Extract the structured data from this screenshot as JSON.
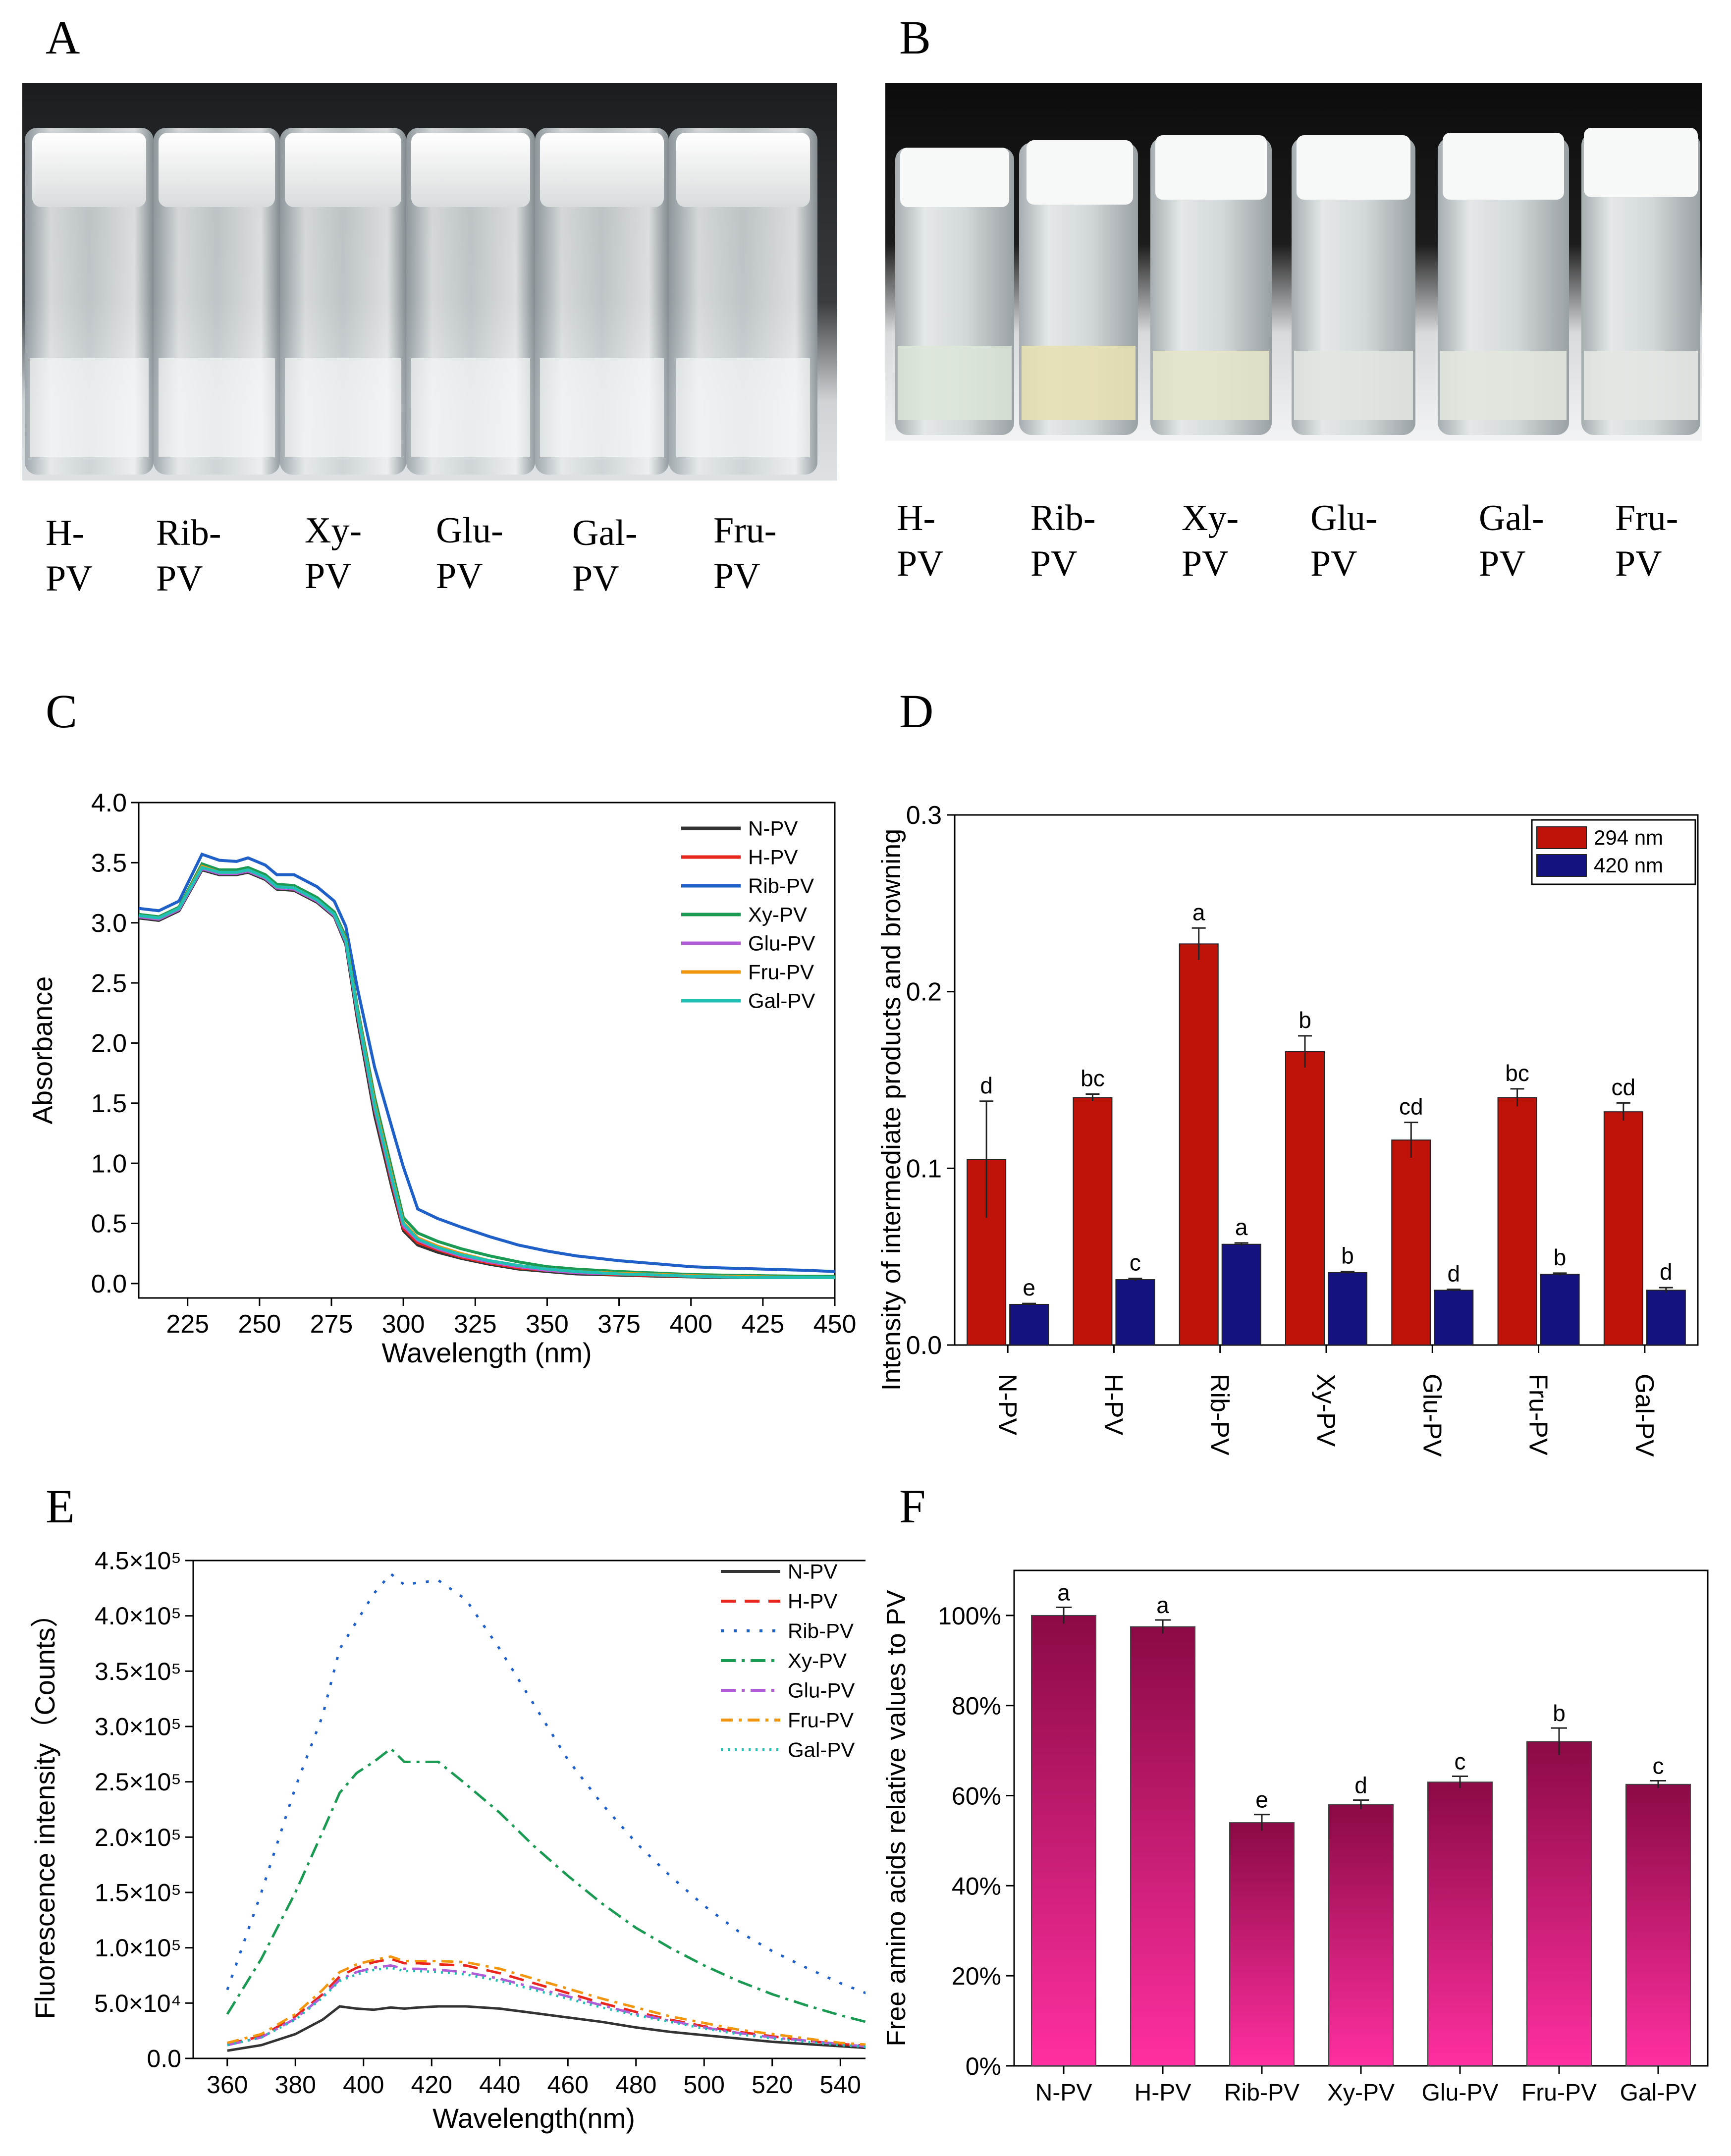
{
  "panels": {
    "A": {
      "letter": "A",
      "vial_labels": [
        "H-\nPV",
        "Rib-\nPV",
        "Xy-\nPV",
        "Glu-\nPV",
        "Gal-\nPV",
        "Fru-\nPV"
      ]
    },
    "B": {
      "letter": "B",
      "vial_labels": [
        "H-\nPV",
        "Rib-\nPV",
        "Xy-\nPV",
        "Glu-\nPV",
        "Gal-\nPV",
        "Fru-\nPV"
      ]
    },
    "C": {
      "letter": "C"
    },
    "D": {
      "letter": "D"
    },
    "E": {
      "letter": "E"
    },
    "F": {
      "letter": "F"
    }
  },
  "colors": {
    "N-PV": "#333333",
    "H-PV": "#e8261d",
    "Rib-PV": "#1f5fc8",
    "Xy-PV": "#1a9a52",
    "Glu-PV": "#b05cd6",
    "Fru-PV": "#f2950f",
    "Gal-PV": "#21c0b4",
    "bar294": "#bf1208",
    "bar420": "#14127e",
    "barF_top": "#8b0a45",
    "barF_bottom": "#ff2fa0"
  },
  "chart_data": [
    {
      "id": "C",
      "type": "line",
      "title": "",
      "xlabel": "Wavelength (nm)",
      "ylabel": "Absorbance",
      "xlim": [
        208,
        450
      ],
      "ylim": [
        -0.12,
        4.0
      ],
      "xticks": [
        "225",
        "250",
        "275",
        "300",
        "325",
        "350",
        "375",
        "400",
        "425",
        "450"
      ],
      "yticks": [
        "0.0",
        "0.5",
        "1.0",
        "1.5",
        "2.0",
        "2.5",
        "3.0",
        "3.5",
        "4.0"
      ],
      "legend": [
        "N-PV",
        "H-PV",
        "Rib-PV",
        "Xy-PV",
        "Glu-PV",
        "Fru-PV",
        "Gal-PV"
      ],
      "x": [
        208,
        215,
        222,
        230,
        236,
        242,
        246,
        252,
        256,
        262,
        270,
        276,
        280,
        284,
        290,
        296,
        300,
        305,
        312,
        320,
        330,
        340,
        350,
        360,
        375,
        390,
        400,
        410,
        425,
        440,
        450
      ],
      "series": [
        {
          "name": "N-PV",
          "values": [
            3.04,
            3.02,
            3.1,
            3.44,
            3.4,
            3.4,
            3.42,
            3.36,
            3.28,
            3.27,
            3.17,
            3.05,
            2.82,
            2.2,
            1.4,
            0.8,
            0.44,
            0.32,
            0.26,
            0.21,
            0.16,
            0.12,
            0.1,
            0.08,
            0.07,
            0.06,
            0.055,
            0.05,
            0.05,
            0.05,
            0.05
          ]
        },
        {
          "name": "H-PV",
          "values": [
            3.05,
            3.03,
            3.11,
            3.46,
            3.41,
            3.41,
            3.43,
            3.37,
            3.29,
            3.28,
            3.18,
            3.06,
            2.84,
            2.24,
            1.45,
            0.84,
            0.46,
            0.34,
            0.28,
            0.22,
            0.17,
            0.13,
            0.11,
            0.09,
            0.075,
            0.065,
            0.06,
            0.055,
            0.05,
            0.05,
            0.05
          ]
        },
        {
          "name": "Rib-PV",
          "values": [
            3.12,
            3.1,
            3.18,
            3.57,
            3.52,
            3.51,
            3.54,
            3.48,
            3.4,
            3.4,
            3.3,
            3.18,
            2.97,
            2.46,
            1.8,
            1.3,
            0.97,
            0.62,
            0.54,
            0.47,
            0.39,
            0.32,
            0.27,
            0.23,
            0.19,
            0.16,
            0.14,
            0.13,
            0.12,
            0.11,
            0.1
          ]
        },
        {
          "name": "Xy-PV",
          "values": [
            3.07,
            3.05,
            3.13,
            3.49,
            3.44,
            3.44,
            3.46,
            3.4,
            3.32,
            3.31,
            3.21,
            3.09,
            2.88,
            2.3,
            1.55,
            0.95,
            0.55,
            0.42,
            0.35,
            0.29,
            0.23,
            0.18,
            0.14,
            0.12,
            0.1,
            0.085,
            0.075,
            0.07,
            0.065,
            0.06,
            0.06
          ]
        },
        {
          "name": "Glu-PV",
          "values": [
            3.05,
            3.03,
            3.11,
            3.45,
            3.41,
            3.41,
            3.43,
            3.37,
            3.29,
            3.28,
            3.18,
            3.06,
            2.84,
            2.25,
            1.46,
            0.86,
            0.48,
            0.36,
            0.29,
            0.23,
            0.18,
            0.14,
            0.11,
            0.09,
            0.08,
            0.07,
            0.06,
            0.055,
            0.05,
            0.05,
            0.05
          ]
        },
        {
          "name": "Fru-PV",
          "values": [
            3.06,
            3.04,
            3.12,
            3.47,
            3.42,
            3.42,
            3.44,
            3.38,
            3.3,
            3.29,
            3.19,
            3.07,
            2.86,
            2.27,
            1.5,
            0.9,
            0.51,
            0.38,
            0.31,
            0.25,
            0.19,
            0.15,
            0.12,
            0.1,
            0.085,
            0.075,
            0.065,
            0.06,
            0.055,
            0.05,
            0.05
          ]
        },
        {
          "name": "Gal-PV",
          "values": [
            3.06,
            3.04,
            3.12,
            3.46,
            3.42,
            3.42,
            3.44,
            3.38,
            3.3,
            3.29,
            3.19,
            3.07,
            2.85,
            2.26,
            1.48,
            0.88,
            0.5,
            0.37,
            0.3,
            0.24,
            0.19,
            0.15,
            0.12,
            0.1,
            0.08,
            0.07,
            0.06,
            0.055,
            0.05,
            0.05,
            0.05
          ]
        }
      ]
    },
    {
      "id": "D",
      "type": "bar",
      "title": "",
      "xlabel": "",
      "ylabel": "Intensity of intermediate products and browning",
      "ylim": [
        0,
        0.3
      ],
      "yticks": [
        "0.0",
        "0.1",
        "0.2",
        "0.3"
      ],
      "categories": [
        "N-PV",
        "H-PV",
        "Rib-PV",
        "Xy-PV",
        "Glu-PV",
        "Fru-PV",
        "Gal-PV"
      ],
      "series": [
        {
          "name": "294 nm",
          "values": [
            0.105,
            0.14,
            0.227,
            0.166,
            0.116,
            0.14,
            0.132
          ],
          "errors": [
            0.033,
            0.002,
            0.009,
            0.009,
            0.01,
            0.005,
            0.005
          ],
          "letters": [
            "d",
            "bc",
            "a",
            "b",
            "cd",
            "bc",
            "cd"
          ]
        },
        {
          "name": "420 nm",
          "values": [
            0.023,
            0.037,
            0.057,
            0.041,
            0.031,
            0.04,
            0.031
          ],
          "errors": [
            0.0005,
            0.0007,
            0.0008,
            0.0006,
            0.0005,
            0.0007,
            0.0015
          ],
          "letters": [
            "e",
            "c",
            "a",
            "b",
            "d",
            "b",
            "d"
          ]
        }
      ]
    },
    {
      "id": "E",
      "type": "line",
      "title": "",
      "xlabel": "Wavelength(nm)",
      "ylabel": "Fluorescence intensity（Counts）",
      "xlim": [
        350,
        550
      ],
      "ylim": [
        0,
        450000
      ],
      "xticks": [
        "360",
        "380",
        "400",
        "420",
        "440",
        "460",
        "480",
        "500",
        "520",
        "540"
      ],
      "yticks": [
        "0.0",
        "5.0×10⁴",
        "1.0×10⁵",
        "1.5×10⁵",
        "2.0×10⁵",
        "2.5×10⁵",
        "3.0×10⁵",
        "3.5×10⁵",
        "4.0×10⁵",
        "4.5×10⁵"
      ],
      "legend": [
        "N-PV",
        "H-PV",
        "Rib-PV",
        "Xy-PV",
        "Glu-PV",
        "Fru-PV",
        "Gal-PV"
      ],
      "x": [
        360,
        370,
        380,
        388,
        393,
        398,
        403,
        408,
        412,
        416,
        422,
        430,
        440,
        450,
        460,
        470,
        480,
        490,
        500,
        510,
        520,
        530,
        540,
        550
      ],
      "series": [
        {
          "name": "N-PV",
          "values": [
            7000,
            12000,
            22000,
            35000,
            47000,
            45000,
            44000,
            46000,
            45000,
            46000,
            47000,
            47000,
            45000,
            41000,
            37000,
            33000,
            28000,
            24000,
            21000,
            18000,
            15000,
            13000,
            11000,
            9000
          ]
        },
        {
          "name": "H-PV",
          "values": [
            13000,
            20000,
            38000,
            58000,
            74000,
            82000,
            87000,
            90000,
            86000,
            86000,
            85000,
            84000,
            77000,
            68000,
            59000,
            50000,
            42000,
            35000,
            29000,
            24000,
            20000,
            16000,
            13000,
            11000
          ]
        },
        {
          "name": "Rib-PV",
          "values": [
            62000,
            150000,
            245000,
            310000,
            370000,
            395000,
            420000,
            438000,
            428000,
            430000,
            432000,
            415000,
            370000,
            320000,
            270000,
            230000,
            195000,
            165000,
            138000,
            115000,
            97000,
            82000,
            68000,
            56000
          ]
        },
        {
          "name": "Xy-PV",
          "values": [
            40000,
            90000,
            150000,
            205000,
            240000,
            258000,
            268000,
            280000,
            268000,
            268000,
            268000,
            248000,
            222000,
            192000,
            165000,
            140000,
            118000,
            100000,
            84000,
            70000,
            58000,
            48000,
            39000,
            31000
          ]
        },
        {
          "name": "Glu-PV",
          "values": [
            12000,
            19000,
            36000,
            56000,
            71000,
            78000,
            82000,
            84000,
            81000,
            81000,
            80000,
            78000,
            72000,
            64000,
            56000,
            48000,
            40000,
            34000,
            28000,
            23000,
            19000,
            16000,
            13000,
            10000
          ]
        },
        {
          "name": "Fru-PV",
          "values": [
            14000,
            22000,
            40000,
            62000,
            78000,
            85000,
            89000,
            92000,
            88000,
            88000,
            88000,
            87000,
            81000,
            72000,
            63000,
            54000,
            46000,
            38000,
            32000,
            26000,
            22000,
            18000,
            14000,
            12000
          ]
        },
        {
          "name": "Gal-PV",
          "values": [
            12000,
            19000,
            35000,
            55000,
            70000,
            76000,
            80000,
            82000,
            79000,
            79000,
            78000,
            76000,
            70000,
            62000,
            54000,
            46000,
            39000,
            33000,
            27000,
            22000,
            18000,
            15000,
            12000,
            10000
          ]
        }
      ]
    },
    {
      "id": "F",
      "type": "bar",
      "title": "",
      "xlabel": "",
      "ylabel": "Free amino acids relative values to PV",
      "ylim": [
        0,
        110
      ],
      "yticks": [
        "0%",
        "20%",
        "40%",
        "60%",
        "80%",
        "100%"
      ],
      "categories": [
        "N-PV",
        "H-PV",
        "Rib-PV",
        "Xy-PV",
        "Glu-PV",
        "Fru-PV",
        "Gal-PV"
      ],
      "series": [
        {
          "name": "Free amino acids",
          "values": [
            100,
            97.5,
            54,
            58,
            63,
            72,
            62.5
          ],
          "errors": [
            1.8,
            1.5,
            1.8,
            1.0,
            1.3,
            3.0,
            0.8
          ],
          "letters": [
            "a",
            "a",
            "e",
            "d",
            "c",
            "b",
            "c"
          ]
        }
      ]
    }
  ]
}
